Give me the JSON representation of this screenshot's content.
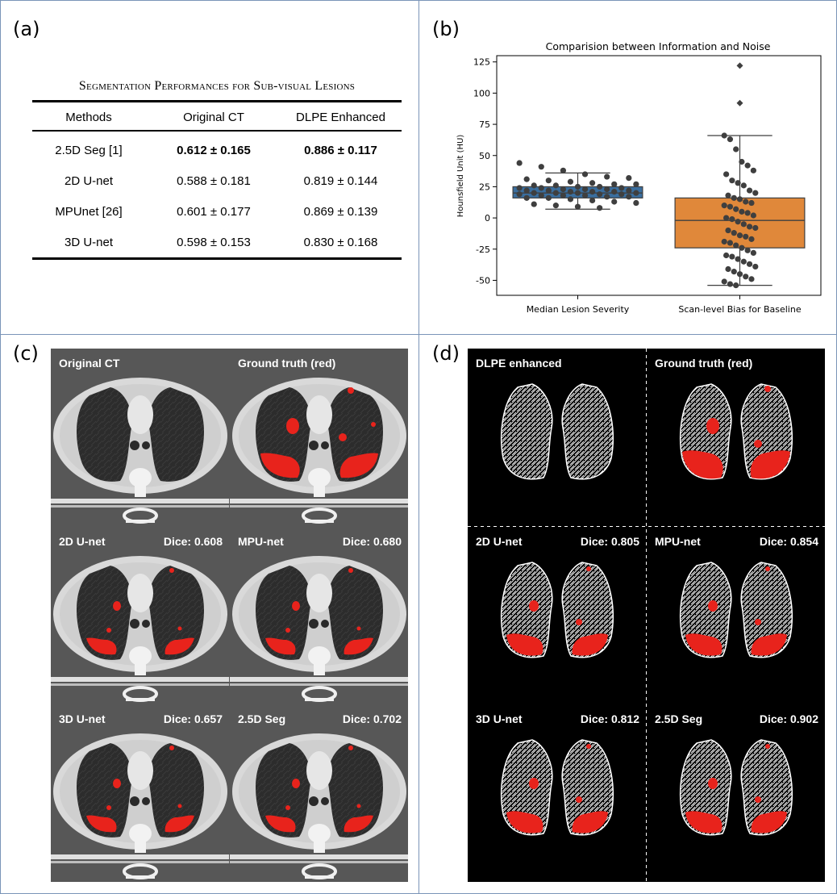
{
  "panels": {
    "a": "(a)",
    "b": "(b)",
    "c": "(c)",
    "d": "(d)"
  },
  "table": {
    "caption": "Segmentation Performances for Sub-visual Lesions",
    "headers": [
      "Methods",
      "Original CT",
      "DLPE Enhanced"
    ],
    "rows": [
      {
        "method": "2.5D Seg [1]",
        "original": "0.612 ± 0.165",
        "enhanced": "0.886 ± 0.117",
        "bold": true
      },
      {
        "method": "2D U-net",
        "original": "0.588 ± 0.181",
        "enhanced": "0.819 ± 0.144",
        "bold": false
      },
      {
        "method": "MPUnet [26]",
        "original": "0.601 ± 0.177",
        "enhanced": "0.869 ± 0.139",
        "bold": false
      },
      {
        "method": "3D U-net",
        "original": "0.598 ± 0.153",
        "enhanced": "0.830 ± 0.168",
        "bold": false
      }
    ]
  },
  "chart_data": {
    "type": "box",
    "title": "Comparision between Information and Noise",
    "xlabel": "",
    "ylabel": "Hounsfield Unit (HU)",
    "ylim": [
      -62,
      130
    ],
    "yticks": [
      -50,
      -25,
      0,
      25,
      50,
      75,
      100,
      125
    ],
    "categories": [
      "Median Lesion Severity",
      "Scan-level Bias for Baseline"
    ],
    "colors": [
      "#3a6e9e",
      "#e0883a"
    ],
    "boxes": [
      {
        "q1": 16,
        "median": 20,
        "q3": 25,
        "whisker_low": 7,
        "whisker_high": 36,
        "outliers": []
      },
      {
        "q1": -24,
        "median": -2,
        "q3": 16,
        "whisker_low": -54,
        "whisker_high": 66,
        "outliers": [
          122,
          92
        ]
      }
    ],
    "points": [
      [
        44,
        41,
        38,
        35,
        33,
        32,
        31,
        30,
        29,
        28,
        27,
        27,
        26,
        26,
        25,
        25,
        24,
        24,
        24,
        23,
        23,
        23,
        22,
        22,
        22,
        21,
        21,
        21,
        20,
        20,
        20,
        20,
        19,
        19,
        19,
        18,
        18,
        18,
        17,
        17,
        16,
        16,
        15,
        14,
        13,
        12,
        11,
        10,
        9,
        8
      ],
      [
        66,
        63,
        55,
        45,
        42,
        38,
        35,
        30,
        28,
        26,
        22,
        20,
        18,
        16,
        15,
        13,
        12,
        10,
        9,
        7,
        5,
        4,
        2,
        0,
        -1,
        -3,
        -5,
        -7,
        -8,
        -10,
        -12,
        -14,
        -15,
        -17,
        -19,
        -20,
        -22,
        -24,
        -26,
        -28,
        -30,
        -31,
        -33,
        -35,
        -37,
        -39,
        -41,
        -43,
        -45,
        -47,
        -49,
        -51,
        -53,
        -54
      ]
    ]
  },
  "ct_tiles": [
    {
      "label": "Original CT",
      "dice": ""
    },
    {
      "label": "Ground truth (red)",
      "dice": ""
    },
    {
      "label": "2D U-net",
      "dice": "Dice: 0.608"
    },
    {
      "label": "MPU-net",
      "dice": "Dice: 0.680"
    },
    {
      "label": "3D U-net",
      "dice": "Dice: 0.657"
    },
    {
      "label": "2.5D Seg",
      "dice": "Dice: 0.702"
    }
  ],
  "dlpe_tiles": [
    {
      "label": "DLPE enhanced",
      "dice": ""
    },
    {
      "label": "Ground truth (red)",
      "dice": ""
    },
    {
      "label": "2D U-net",
      "dice": "Dice: 0.805"
    },
    {
      "label": "MPU-net",
      "dice": "Dice: 0.854"
    },
    {
      "label": "3D U-net",
      "dice": "Dice: 0.812"
    },
    {
      "label": "2.5D Seg",
      "dice": "Dice: 0.902"
    }
  ],
  "colors": {
    "lesion": "#e8231c",
    "ct_bg": "#575757",
    "border": "#7a95b8"
  }
}
